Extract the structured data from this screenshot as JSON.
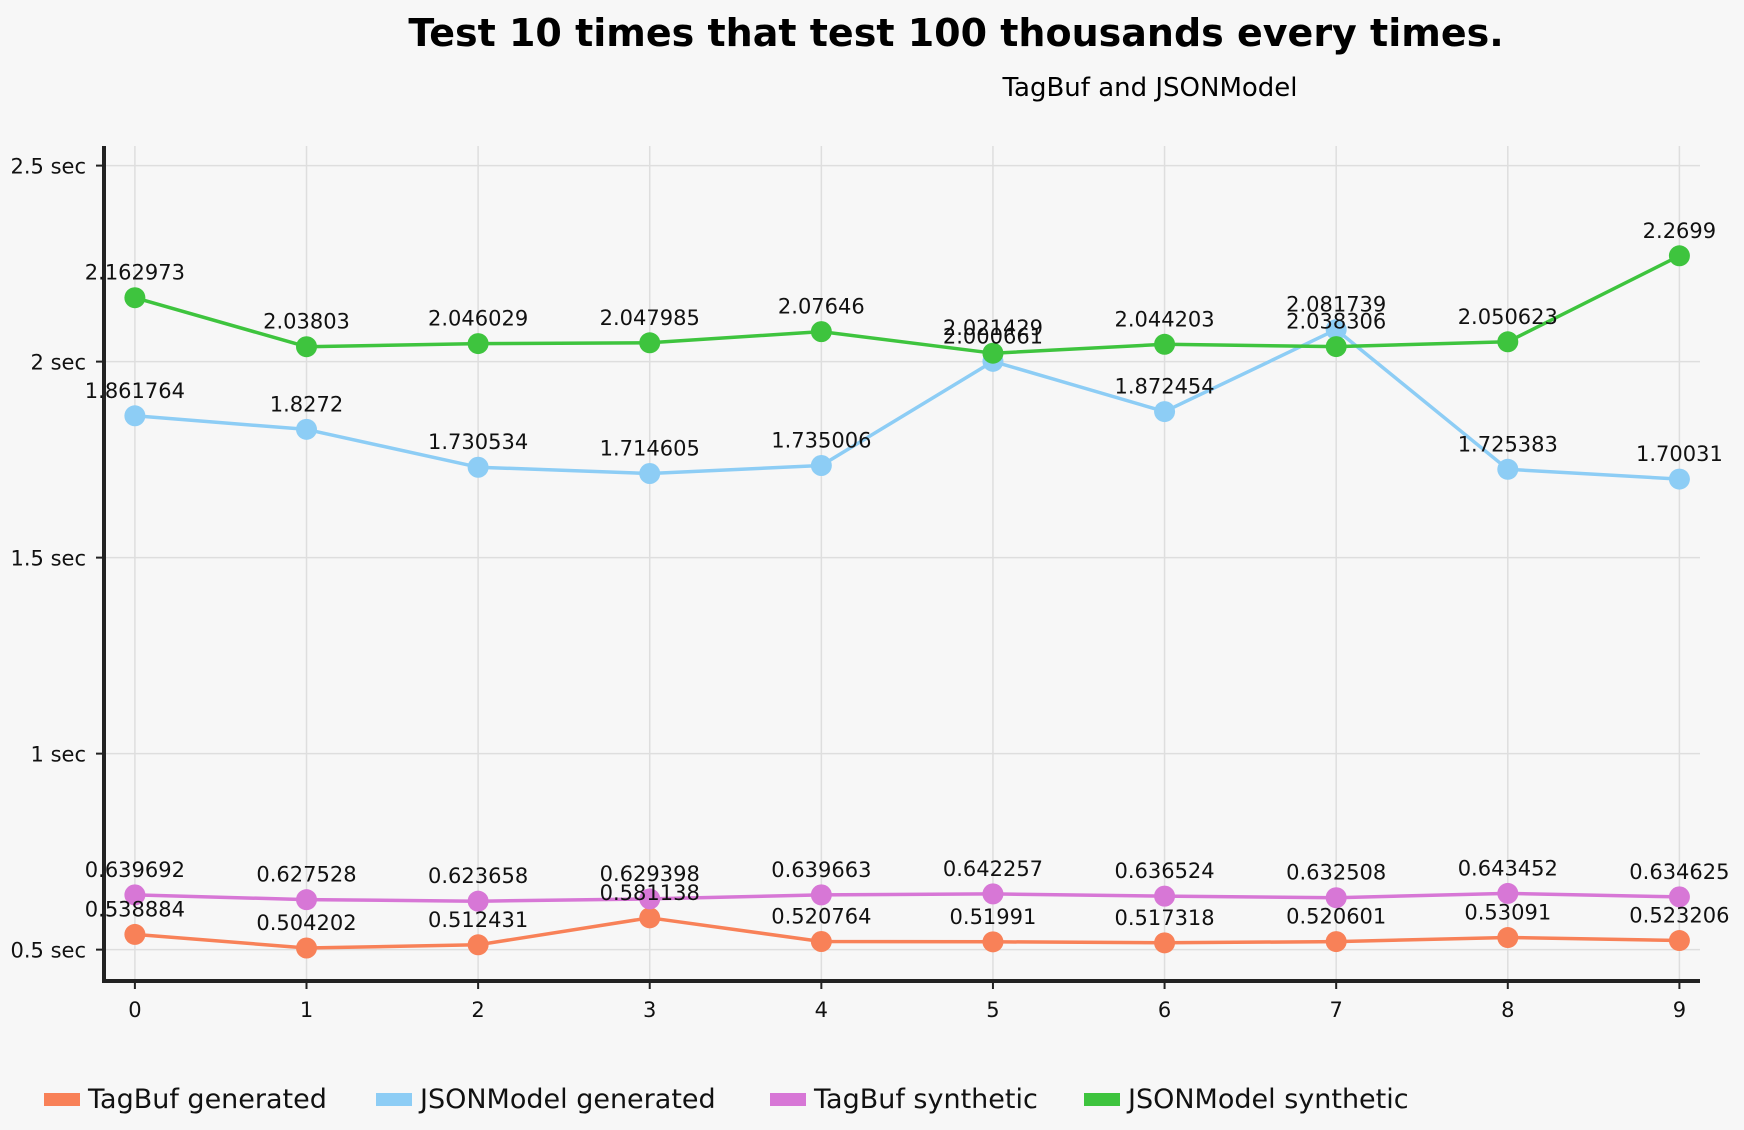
{
  "chart_data": {
    "type": "line",
    "title": "Test 10 times that test 100 thousands every times.",
    "subtitle": "TagBuf and JSONModel",
    "x": [
      0,
      1,
      2,
      3,
      4,
      5,
      6,
      7,
      8,
      9
    ],
    "x_tick_labels": [
      "0",
      "1",
      "2",
      "3",
      "4",
      "5",
      "6",
      "7",
      "8",
      "9"
    ],
    "y_ticks": [
      0.5,
      1,
      1.5,
      2,
      2.5
    ],
    "y_tick_labels": [
      "0.5 sec",
      "1 sec",
      "1.5 sec",
      "2 sec",
      "2.5 sec"
    ],
    "ylim": [
      0.42,
      2.55
    ],
    "xlim": [
      -0.18,
      9.12
    ],
    "grid": true,
    "legend_position": "bottom",
    "series": [
      {
        "name": "TagBuf generated",
        "color": "#f88158",
        "values": [
          0.538884,
          0.504202,
          0.512431,
          0.581138,
          0.520764,
          0.51991,
          0.517318,
          0.520601,
          0.53091,
          0.523206
        ],
        "labels": [
          "0.538884",
          "0.504202",
          "0.512431",
          "0.581138",
          "0.520764",
          "0.51991",
          "0.517318",
          "0.520601",
          "0.53091",
          "0.523206"
        ]
      },
      {
        "name": "JSONModel generated",
        "color": "#8dcdf5",
        "values": [
          1.861764,
          1.8272,
          1.730534,
          1.714605,
          1.735006,
          2.000661,
          1.872454,
          2.081739,
          1.725383,
          1.70031
        ],
        "labels": [
          "1.861764",
          "1.8272",
          "1.730534",
          "1.714605",
          "1.735006",
          "2.000661",
          "1.872454",
          "2.081739",
          "1.725383",
          "1.70031"
        ]
      },
      {
        "name": "TagBuf synthetic",
        "color": "#d777d6",
        "values": [
          0.639692,
          0.627528,
          0.623658,
          0.629398,
          0.639663,
          0.642257,
          0.636524,
          0.632508,
          0.643452,
          0.634625
        ],
        "labels": [
          "0.639692",
          "0.627528",
          "0.623658",
          "0.629398",
          "0.639663",
          "0.642257",
          "0.636524",
          "0.632508",
          "0.643452",
          "0.634625"
        ]
      },
      {
        "name": "JSONModel synthetic",
        "color": "#3ec43e",
        "values": [
          2.162973,
          2.03803,
          2.046029,
          2.047985,
          2.07646,
          2.021429,
          2.044203,
          2.038306,
          2.050623,
          2.2699
        ],
        "labels": [
          "2.162973",
          "2.03803",
          "2.046029",
          "2.047985",
          "2.07646",
          "2.021429",
          "2.044203",
          "2.038306",
          "2.050623",
          "2.2699"
        ]
      }
    ]
  }
}
